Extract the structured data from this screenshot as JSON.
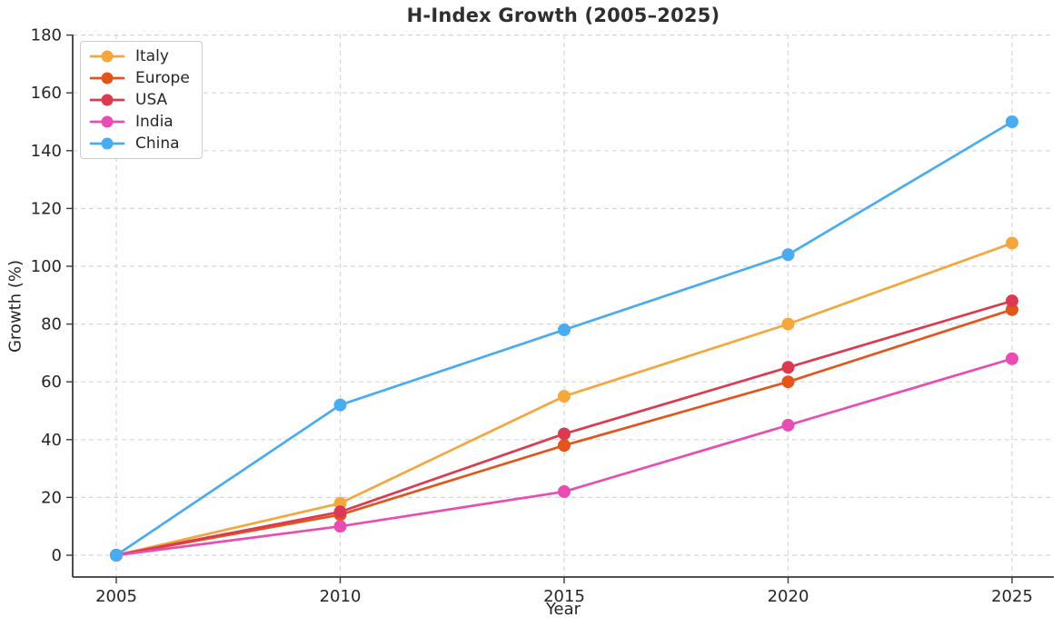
{
  "chart_data": {
    "type": "line",
    "title": "H-Index Growth (2005–2025)",
    "xlabel": "Year",
    "ylabel": "Growth (%)",
    "x": [
      2005,
      2010,
      2015,
      2020,
      2025
    ],
    "series": [
      {
        "name": "Italy",
        "color": "#F4A73C",
        "values": [
          0,
          18,
          55,
          80,
          108
        ]
      },
      {
        "name": "Europe",
        "color": "#E1561C",
        "values": [
          0,
          14,
          38,
          60,
          85
        ]
      },
      {
        "name": "USA",
        "color": "#DA3B52",
        "values": [
          0,
          15,
          42,
          65,
          88
        ]
      },
      {
        "name": "India",
        "color": "#E84DB3",
        "values": [
          0,
          10,
          22,
          45,
          68
        ]
      },
      {
        "name": "China",
        "color": "#4AACF0",
        "values": [
          0,
          52,
          78,
          104,
          150
        ]
      }
    ],
    "xticks": [
      2005,
      2010,
      2015,
      2020,
      2025
    ],
    "yticks": [
      0,
      20,
      40,
      60,
      80,
      100,
      120,
      140,
      160,
      180
    ],
    "xlim": [
      2004,
      2026
    ],
    "ylim": [
      -7.5,
      180
    ],
    "grid": true,
    "grid_style": "dashed",
    "legend_position": "upper-left",
    "marker": "circle"
  },
  "colors": {
    "background": "#ffffff",
    "grid": "#d6d6d6",
    "spine": "#3a3a3a",
    "text": "#262626",
    "legend_border": "#cccccc"
  }
}
